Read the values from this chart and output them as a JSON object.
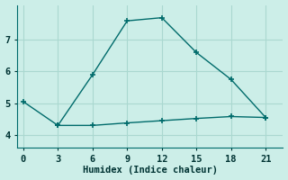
{
  "xlabel": "Humidex (Indice chaleur)",
  "background_color": "#cceee8",
  "grid_color": "#aad8d0",
  "line_color": "#006b6b",
  "series1_x": [
    0,
    3,
    6,
    9,
    12,
    15,
    18,
    21
  ],
  "series1_y": [
    5.05,
    4.3,
    5.9,
    7.6,
    7.7,
    6.6,
    5.75,
    4.55
  ],
  "series2_x": [
    3,
    6,
    9,
    12,
    15,
    18,
    21
  ],
  "series2_y": [
    4.3,
    4.3,
    4.38,
    4.45,
    4.52,
    4.58,
    4.55
  ],
  "xlim": [
    -0.5,
    22.5
  ],
  "ylim": [
    3.6,
    8.1
  ],
  "xticks": [
    0,
    3,
    6,
    9,
    12,
    15,
    18,
    21
  ],
  "yticks": [
    4,
    5,
    6,
    7
  ],
  "xlabel_fontsize": 7.5,
  "tick_fontsize": 7.5,
  "marker": "+",
  "markersize": 5,
  "linewidth": 1.0
}
